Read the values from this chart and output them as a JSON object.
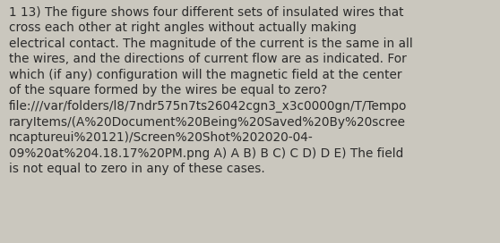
{
  "background_color": "#cac7be",
  "font_size": 9.8,
  "text_color": "#2b2b2b",
  "fig_width": 5.58,
  "fig_height": 2.72,
  "dpi": 100,
  "line1": "1 13) The figure shows four different sets of insulated wires that",
  "line2": "cross each other at right angles without actually making",
  "line3": "electrical contact. The magnitude of the current is the same in all",
  "line4": "the wires, and the directions of current flow are as indicated. For",
  "line5": "which (if any) configuration will the magnetic field at the center",
  "line6": "of the square formed by the wires be equal to zero?",
  "line7": "file:///var/folders/l8/7ndr575n7ts26042cgn3_x3c0000gn/T/Tempo",
  "line8": "raryItems/(A%20Document%20Being%20Saved%20By%20scree",
  "line9": "ncaptureui%20121)/Screen%20Shot%202020-04-",
  "line10": "09%20at%204.18.17%20PM.png A) A B) B C) C D) D E) The field",
  "line11": "is not equal to zero in any of these cases."
}
